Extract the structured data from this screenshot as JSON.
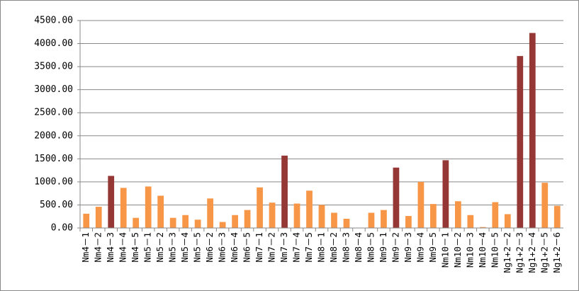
{
  "chart_data": {
    "type": "bar",
    "categories": [
      "Nm4－1",
      "Nm4－2",
      "Nm4－3",
      "Nm4－4",
      "Nm4－5",
      "Nm5－1",
      "Nm5－2",
      "Nm5－3",
      "Nm5－4",
      "Nm5－5",
      "Nm6－2",
      "Nm6－3",
      "Nm6－4",
      "Nm6－5",
      "Nm7－1",
      "Nm7－2",
      "Nm7－3",
      "Nm7－4",
      "Nm7－5",
      "Nm8－1",
      "Nm8－2",
      "Nm8－3",
      "Nm8－4",
      "Nm8－5",
      "Nm9－1",
      "Nm9－2",
      "Nm9－3",
      "Nm9－4",
      "Nm9－5",
      "Nm10－1",
      "Nm10－2",
      "Nm10－3",
      "Nm10－4",
      "Nm10－5",
      "Ng1+2－2",
      "Ng1+2－3",
      "Ng1+2－4",
      "Ng1+2－5",
      "Ng1+2－6"
    ],
    "values": [
      310,
      460,
      1130,
      870,
      220,
      900,
      700,
      220,
      280,
      180,
      640,
      130,
      280,
      390,
      880,
      550,
      1570,
      530,
      810,
      500,
      330,
      200,
      0,
      330,
      390,
      1310,
      260,
      1000,
      520,
      1470,
      580,
      280,
      20,
      560,
      300,
      3730,
      4230,
      980,
      480
    ],
    "colors": [
      "#f79646",
      "#f79646",
      "#953735",
      "#f79646",
      "#f79646",
      "#f79646",
      "#f79646",
      "#f79646",
      "#f79646",
      "#f79646",
      "#f79646",
      "#f79646",
      "#f79646",
      "#f79646",
      "#f79646",
      "#f79646",
      "#953735",
      "#f79646",
      "#f79646",
      "#f79646",
      "#f79646",
      "#f79646",
      "#f79646",
      "#f79646",
      "#f79646",
      "#953735",
      "#f79646",
      "#f79646",
      "#f79646",
      "#953735",
      "#f79646",
      "#f79646",
      "#f79646",
      "#f79646",
      "#f79646",
      "#953735",
      "#953735",
      "#f79646",
      "#f79646"
    ],
    "ylim": [
      0,
      4500
    ],
    "yticks": [
      {
        "value": 0,
        "label": "0.00"
      },
      {
        "value": 500,
        "label": "500.00"
      },
      {
        "value": 1000,
        "label": "1000.00"
      },
      {
        "value": 1500,
        "label": "1500.00"
      },
      {
        "value": 2000,
        "label": "2000.00"
      },
      {
        "value": 2500,
        "label": "2500.00"
      },
      {
        "value": 3000,
        "label": "3000.00"
      },
      {
        "value": 3500,
        "label": "3500.00"
      },
      {
        "value": 4000,
        "label": "4000.00"
      },
      {
        "value": 4500,
        "label": "4500.00"
      }
    ],
    "grid": true
  }
}
